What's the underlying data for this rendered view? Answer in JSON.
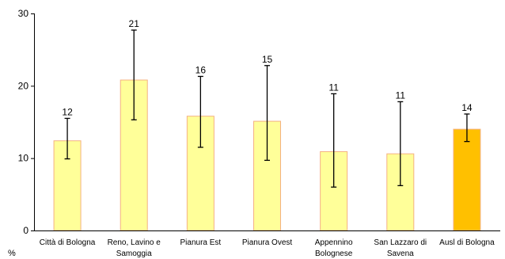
{
  "chart_data": {
    "type": "bar",
    "title": "",
    "xlabel": "",
    "ylabel": "%",
    "ylim": [
      0,
      30
    ],
    "yticks": [
      0,
      10,
      20,
      30
    ],
    "grid": false,
    "legend": "none",
    "categories": [
      [
        "Città di Bologna"
      ],
      [
        "Reno, Lavino e",
        "Samoggia"
      ],
      [
        "Pianura Est"
      ],
      [
        "Pianura Ovest"
      ],
      [
        "Appennino",
        "Bolognese"
      ],
      [
        "San Lazzaro di",
        "Savena"
      ],
      [
        "Ausl di Bologna"
      ]
    ],
    "values": [
      12.4,
      20.8,
      15.8,
      15.1,
      10.9,
      10.6,
      14.0
    ],
    "data_labels": [
      "12",
      "21",
      "16",
      "15",
      "11",
      "11",
      "14"
    ],
    "error_low": [
      9.9,
      15.3,
      11.5,
      9.7,
      6.0,
      6.2,
      12.3
    ],
    "error_high": [
      15.5,
      27.7,
      21.3,
      22.8,
      18.9,
      17.8,
      16.1
    ],
    "colors": {
      "bar_fill": [
        "#ffff99",
        "#ffff99",
        "#ffff99",
        "#ffff99",
        "#ffff99",
        "#ffff99",
        "#ffc000"
      ],
      "bar_stroke": [
        "#f4b183",
        "#f4b183",
        "#f4b183",
        "#f4b183",
        "#f4b183",
        "#f4b183",
        "#f4b183"
      ]
    }
  }
}
